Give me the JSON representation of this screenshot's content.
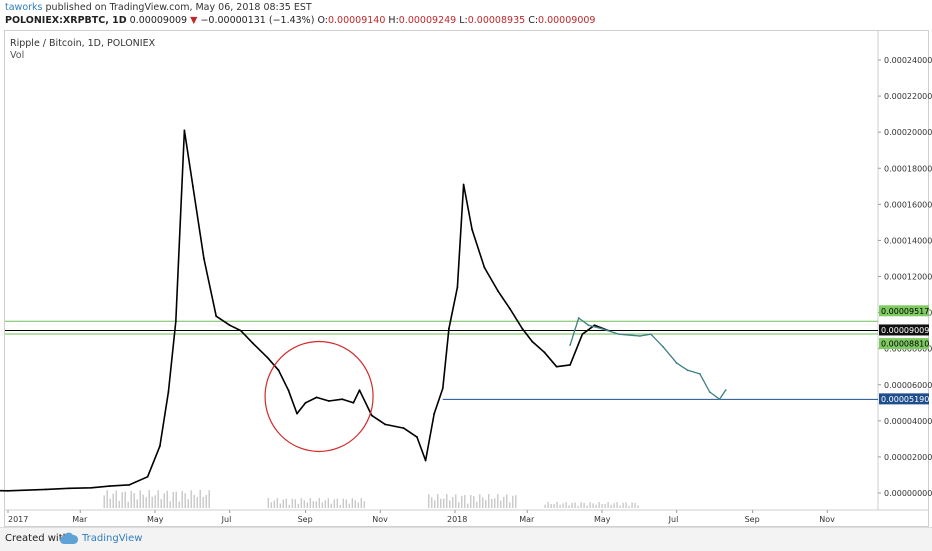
{
  "header": {
    "author": "taworks",
    "published": "published on TradingView.com, May 06, 2018 08:35 EST",
    "symbol": "POLONIEX:XRPBTC, 1D",
    "last": "0.00009009",
    "change_arrow": "▼",
    "change": "−0.00000131 (−1.43%)",
    "o_label": "O:",
    "o_value": "0.00009140",
    "h_label": "H:",
    "h_value": "0.00009249",
    "l_label": "L:",
    "l_value": "0.00008935",
    "c_label": "C:",
    "c_value": "0.00009009"
  },
  "chart_title": "Ripple / Bitcoin, 1D, POLONIEX",
  "vol_label": "Vol",
  "footer": {
    "created_with": "Created with",
    "brand": "TradingView"
  },
  "chart_data": {
    "type": "line",
    "x_axis_labels": [
      "2017",
      "Mar",
      "May",
      "Jul",
      "Sep",
      "Nov",
      "2018",
      "Mar",
      "May",
      "Jul",
      "Sep",
      "Nov"
    ],
    "y_tick_labels": [
      "0.00024000",
      "0.00022000",
      "0.00020000",
      "0.00018000",
      "0.00016000",
      "0.00014000",
      "0.00012000",
      "0.00010000",
      "0.00008000",
      "0.00006000",
      "0.00004000",
      "0.00002000",
      "0.00000000"
    ],
    "ylim": [
      0,
      0.00024
    ],
    "series": [
      {
        "color": "#000000",
        "x": [
          "2016-12-01",
          "2017-01-01",
          "2017-02-01",
          "2017-02-20",
          "2017-03-10",
          "2017-03-25",
          "2017-04-10",
          "2017-04-25",
          "2017-05-05",
          "2017-05-12",
          "2017-05-18",
          "2017-05-25",
          "2017-06-01",
          "2017-06-10",
          "2017-06-20",
          "2017-07-01",
          "2017-07-10",
          "2017-07-20",
          "2017-08-01",
          "2017-08-10",
          "2017-08-18",
          "2017-08-25",
          "2017-09-01",
          "2017-09-10",
          "2017-09-20",
          "2017-10-01",
          "2017-10-10",
          "2017-10-15",
          "2017-10-25",
          "2017-11-05",
          "2017-11-20",
          "2017-12-01",
          "2017-12-08",
          "2017-12-15",
          "2017-12-22",
          "2017-12-27",
          "2018-01-03",
          "2018-01-08",
          "2018-01-15",
          "2018-01-25",
          "2018-02-05",
          "2018-02-15",
          "2018-02-25",
          "2018-03-05",
          "2018-03-15",
          "2018-03-25",
          "2018-04-05",
          "2018-04-15",
          "2018-04-25",
          "2018-05-06"
        ],
        "y": [
          1.5e-06,
          1.2e-06,
          2e-06,
          2.6e-06,
          2.9e-06,
          3.8e-06,
          4.5e-06,
          9e-06,
          2.6e-05,
          5.6e-05,
          9.5e-05,
          0.000201,
          0.00017,
          0.00013,
          9.8e-05,
          9.3e-05,
          9e-05,
          8.3e-05,
          7.5e-05,
          6.8e-05,
          5.7e-05,
          4.4e-05,
          5e-05,
          5.3e-05,
          5.1e-05,
          5.2e-05,
          5e-05,
          5.7e-05,
          4.3e-05,
          3.8e-05,
          3.6e-05,
          3.1e-05,
          1.8e-05,
          4.4e-05,
          5.8e-05,
          9.1e-05,
          0.000114,
          0.000171,
          0.000146,
          0.000125,
          0.000112,
          0.000102,
          9.1e-05,
          8.4e-05,
          7.8e-05,
          7e-05,
          7.1e-05,
          8.8e-05,
          9.3e-05,
          9.009e-05
        ]
      },
      {
        "color": "#3f7f85",
        "x": [
          "2018-04-05",
          "2018-04-12",
          "2018-04-20",
          "2018-05-01",
          "2018-05-15",
          "2018-06-01",
          "2018-06-10",
          "2018-06-20",
          "2018-07-01",
          "2018-07-10",
          "2018-07-20",
          "2018-07-28",
          "2018-08-05",
          "2018-08-10"
        ],
        "y": [
          8.2e-05,
          9.7e-05,
          9.3e-05,
          9.1e-05,
          8.8e-05,
          8.7e-05,
          8.8e-05,
          8.1e-05,
          7.2e-05,
          6.8e-05,
          6.6e-05,
          5.6e-05,
          5.2e-05,
          5.7e-05
        ]
      }
    ],
    "hlines": [
      {
        "value": 9.517e-05,
        "label": "0.00009517",
        "color": "#6fbf5a"
      },
      {
        "value": 9.009e-05,
        "label": "0.00009009",
        "color": "#000000"
      },
      {
        "value": 8.81e-05,
        "label": "0.00008810",
        "color": "#6fbf5a"
      },
      {
        "value": 5.19e-05,
        "label": "0.00005190",
        "color": "#1e4f8c"
      }
    ],
    "circle_annotation": {
      "color": "#d42a2a"
    },
    "volume_label": "Vol"
  }
}
